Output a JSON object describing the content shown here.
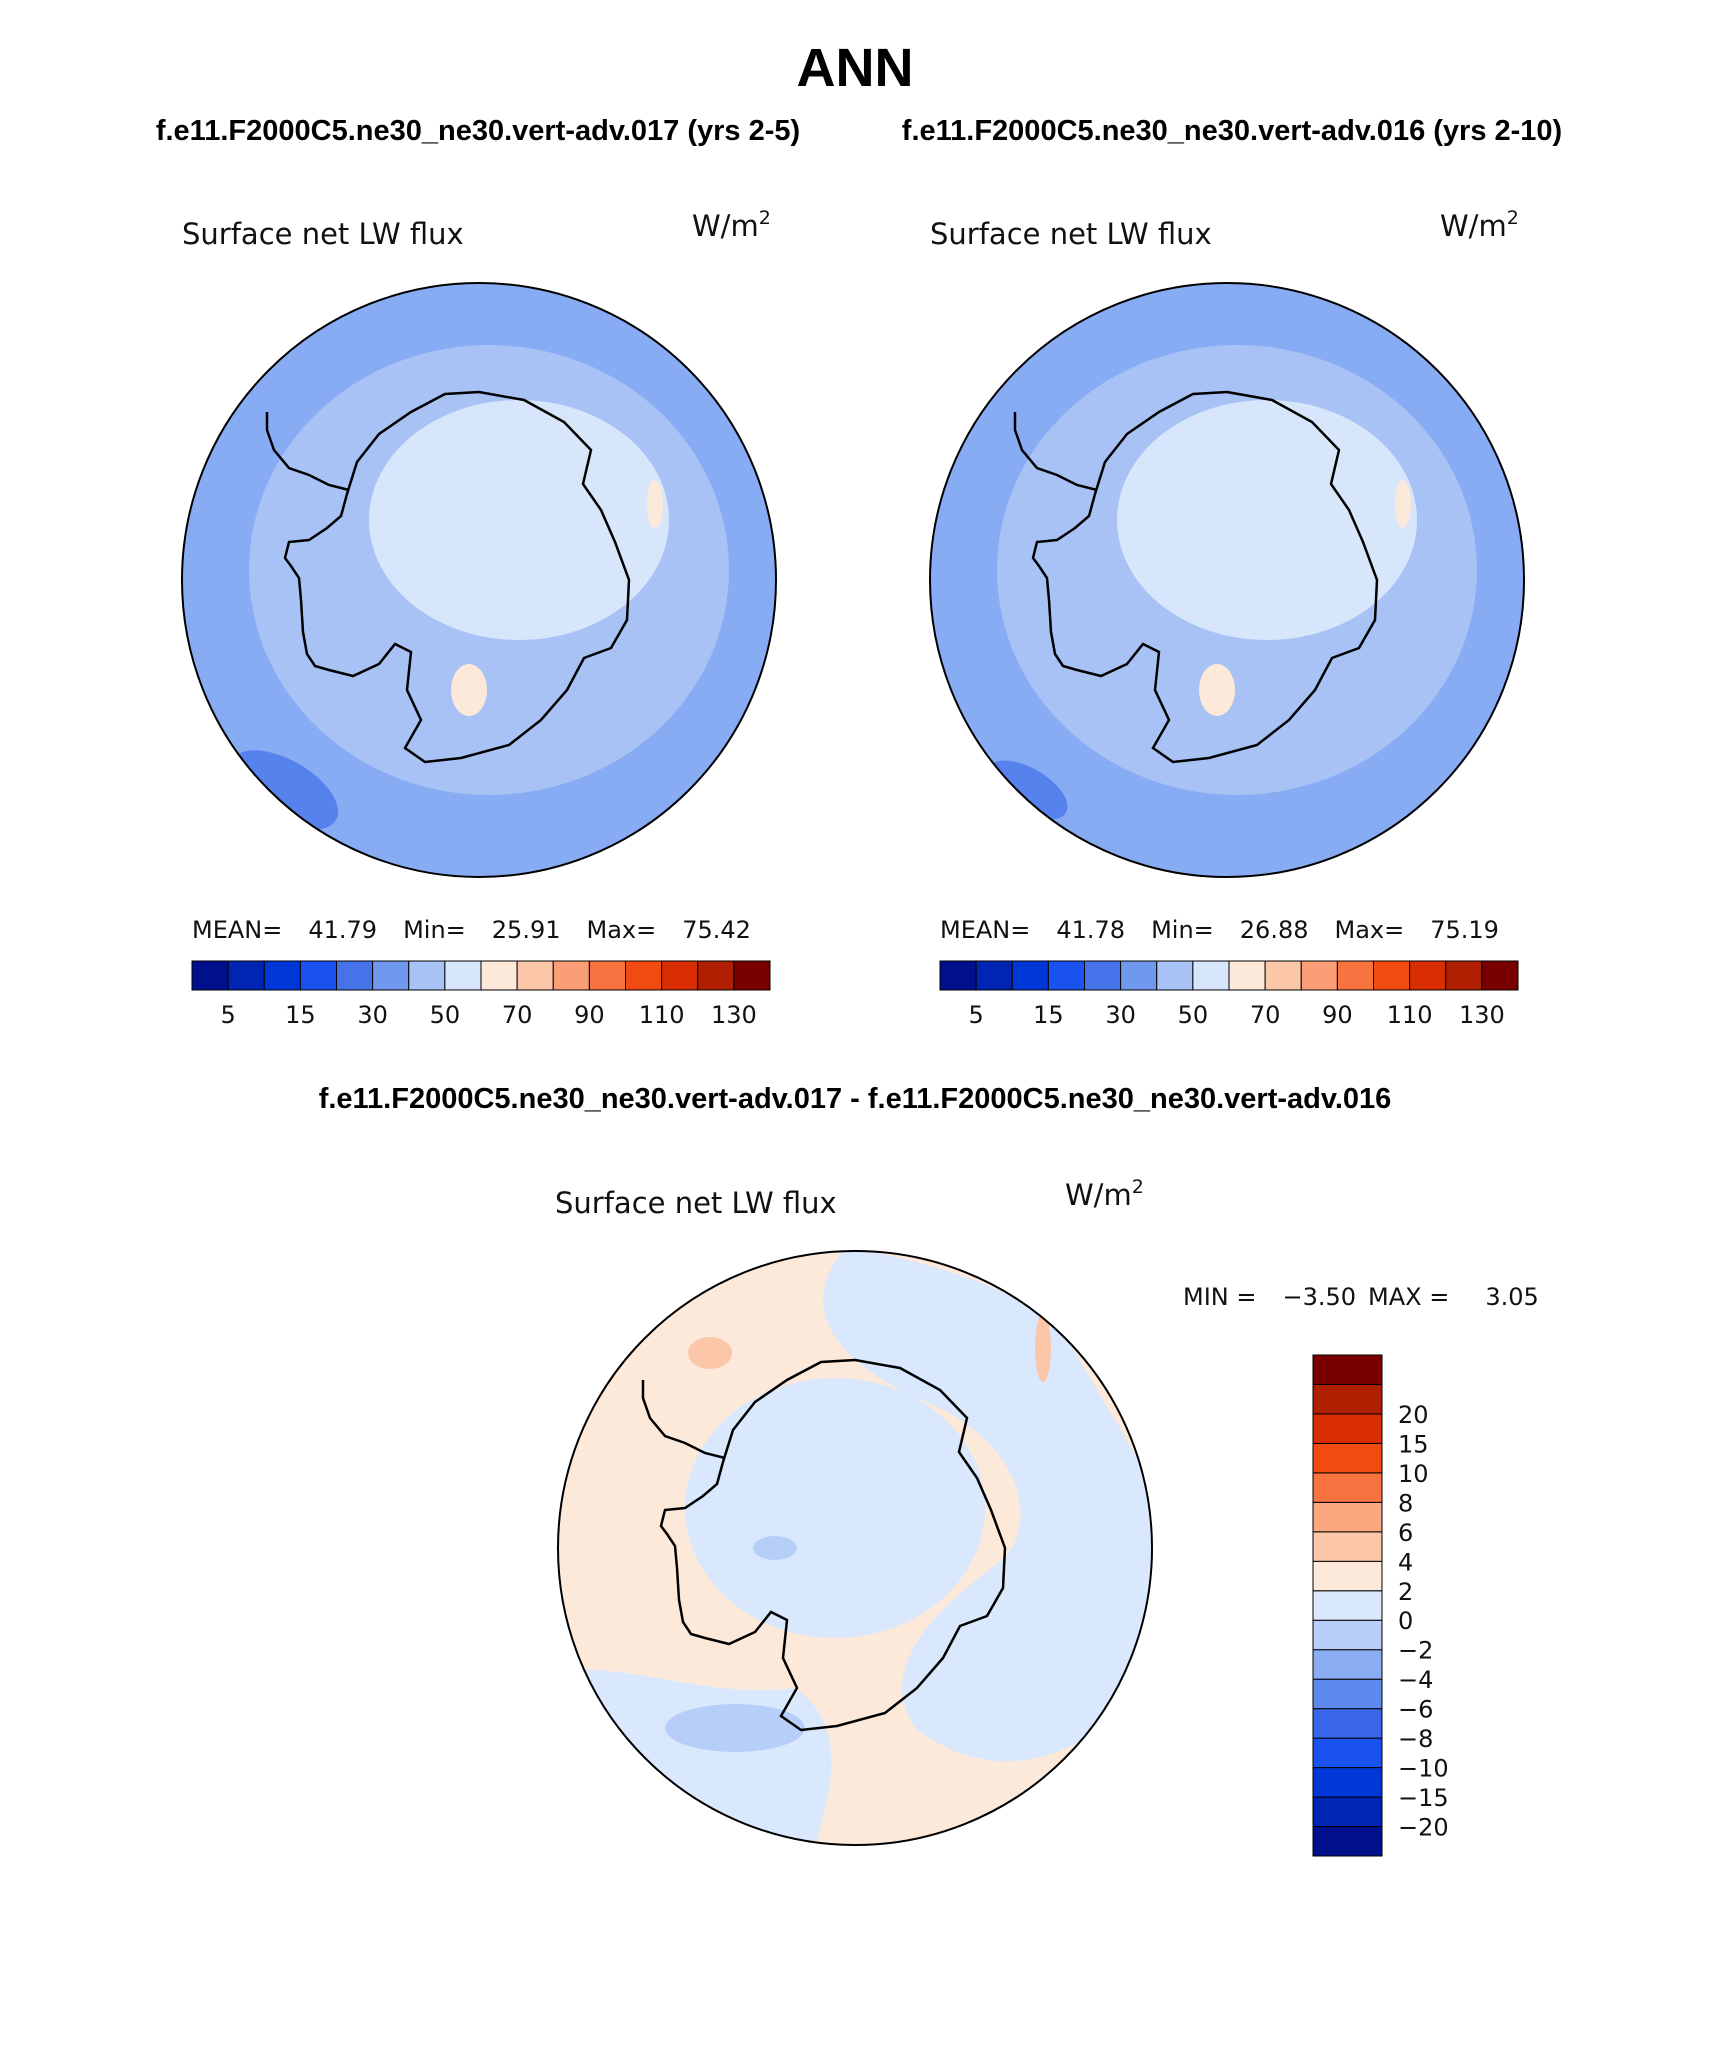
{
  "figure": {
    "title": "ANN",
    "case_a": "f.e11.F2000C5.ne30_ne30.vert-adv.017 (yrs 2-5)",
    "case_b": "f.e11.F2000C5.ne30_ne30.vert-adv.016 (yrs 2-10)",
    "diff_title": "f.e11.F2000C5.ne30_ne30.vert-adv.017 - f.e11.F2000C5.ne30_ne30.vert-adv.016"
  },
  "panels": [
    {
      "variable": "Surface net LW flux",
      "units_base": "W/m",
      "units_exp": "2",
      "mean_label": "MEAN=",
      "mean": "41.79",
      "min_label": "Min=",
      "min": "25.91",
      "max_label": "Max=",
      "max": "75.42"
    },
    {
      "variable": "Surface net LW flux",
      "units_base": "W/m",
      "units_exp": "2",
      "mean_label": "MEAN=",
      "mean": "41.78",
      "min_label": "Min=",
      "min": "26.88",
      "max_label": "Max=",
      "max": "75.19"
    },
    {
      "variable": "Surface net LW flux",
      "units_base": "W/m",
      "units_exp": "2",
      "min_label": "MIN =",
      "min": "−3.50",
      "max_label": "MAX =",
      "max": "3.05"
    }
  ],
  "colorbars": {
    "abs": {
      "colors": [
        "#000f8b",
        "#0024b4",
        "#0038d8",
        "#1a52f0",
        "#4673e9",
        "#7099ee",
        "#a8c2f6",
        "#d7e6fb",
        "#fde9da",
        "#fcc6a8",
        "#fb9e78",
        "#f8733f",
        "#f24b12",
        "#d92d04",
        "#b01f02",
        "#780000"
      ],
      "tick_labels": [
        "5",
        "15",
        "30",
        "50",
        "70",
        "90",
        "110",
        "130"
      ]
    },
    "diff": {
      "colors": [
        "#000f8b",
        "#0024b4",
        "#0038d8",
        "#1a52f0",
        "#3a66ea",
        "#5e8aed",
        "#8aacf3",
        "#b7cef8",
        "#d9e8fc",
        "#fde9da",
        "#fcc6a8",
        "#fba77f",
        "#f8733f",
        "#f24b12",
        "#d92d04",
        "#b01f02",
        "#780000"
      ],
      "tick_labels": [
        "−20",
        "−15",
        "−10",
        "−8",
        "−6",
        "−4",
        "−2",
        "0",
        "2",
        "4",
        "6",
        "8",
        "10",
        "15",
        "20"
      ]
    }
  },
  "colors": {
    "ocean_abs": "#88acf4",
    "ring_abs": "#a8c2f6",
    "inner_abs": "#d7e6fb",
    "deep_abs": "#5582ec",
    "diff_neg": "#d9e8fc",
    "diff_pos": "#fde9da",
    "coast": "#000000"
  }
}
